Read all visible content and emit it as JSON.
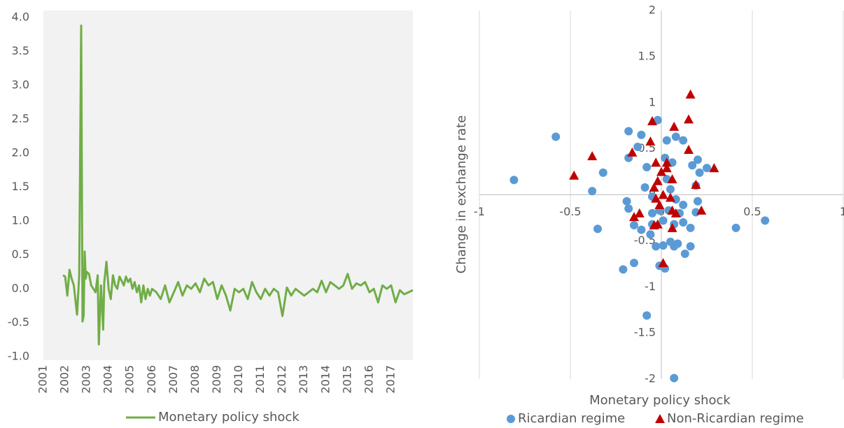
{
  "chart_data": [
    {
      "type": "line",
      "x": [
        2001.9,
        2002.0,
        2002.1,
        2002.2,
        2002.3,
        2002.4,
        2002.55,
        2002.65,
        2002.74,
        2002.8,
        2002.85,
        2002.9,
        2002.95,
        2003.0,
        2003.1,
        2003.2,
        2003.3,
        2003.4,
        2003.5,
        2003.55,
        2003.65,
        2003.75,
        2003.8,
        2003.9,
        2004.0,
        2004.1,
        2004.2,
        2004.3,
        2004.4,
        2004.5,
        2004.6,
        2004.7,
        2004.8,
        2004.9,
        2005.0,
        2005.1,
        2005.2,
        2005.3,
        2005.4,
        2005.5,
        2005.6,
        2005.7,
        2005.8,
        2005.9,
        2006.0,
        2006.2,
        2006.4,
        2006.6,
        2006.8,
        2007.0,
        2007.2,
        2007.4,
        2007.6,
        2007.8,
        2008.0,
        2008.2,
        2008.4,
        2008.6,
        2008.8,
        2009.0,
        2009.2,
        2009.4,
        2009.6,
        2009.8,
        2010.0,
        2010.2,
        2010.4,
        2010.6,
        2010.8,
        2011.0,
        2011.2,
        2011.4,
        2011.6,
        2011.8,
        2012.0,
        2012.2,
        2012.4,
        2012.6,
        2012.8,
        2013.0,
        2013.2,
        2013.4,
        2013.6,
        2013.8,
        2014.0,
        2014.2,
        2014.4,
        2014.6,
        2014.8,
        2015.0,
        2015.2,
        2015.4,
        2015.6,
        2015.8,
        2016.0,
        2016.2,
        2016.4,
        2016.6,
        2016.8,
        2017.0,
        2017.2,
        2017.4,
        2017.6,
        2017.8,
        2018.0
      ],
      "series": [
        {
          "name": "Monetary policy shock",
          "color": "#70ad47",
          "values": [
            0.2,
            0.18,
            -0.1,
            0.28,
            0.15,
            0.05,
            -0.38,
            0.2,
            3.88,
            -0.48,
            -0.4,
            0.55,
            0.15,
            0.25,
            0.22,
            0.05,
            0,
            -0.05,
            0.2,
            -0.82,
            0.05,
            -0.6,
            0.1,
            0.4,
            0,
            -0.15,
            0.2,
            0.05,
            0,
            0.18,
            0.12,
            0.05,
            0.18,
            0.1,
            0.15,
            0,
            0.1,
            -0.05,
            0.05,
            -0.2,
            0.05,
            -0.15,
            0,
            -0.1,
            0,
            -0.05,
            -0.15,
            0.05,
            -0.2,
            -0.05,
            0.1,
            -0.1,
            0.05,
            0,
            0.08,
            -0.05,
            0.15,
            0.05,
            0.1,
            -0.15,
            0.05,
            -0.1,
            -0.32,
            0,
            -0.05,
            0,
            -0.15,
            0.1,
            -0.05,
            -0.15,
            0,
            -0.1,
            0,
            -0.05,
            -0.4,
            0.02,
            -0.1,
            0,
            -0.05,
            -0.1,
            -0.05,
            0,
            -0.05,
            0.12,
            -0.05,
            0.1,
            0.05,
            0,
            0.05,
            0.22,
            0,
            0.08,
            0.05,
            0.1,
            -0.05,
            0,
            -0.2,
            0.05,
            0,
            0.05,
            -0.2,
            -0.02,
            -0.08,
            -0.05,
            -0.02
          ]
        }
      ],
      "xlim": [
        2001,
        2018
      ],
      "xticks": [
        2001,
        2002,
        2003,
        2004,
        2005,
        2006,
        2007,
        2008,
        2009,
        2010,
        2011,
        2012,
        2013,
        2014,
        2015,
        2016,
        2017
      ],
      "ylim": [
        -1,
        4
      ],
      "yticks": [
        {
          "value": 4,
          "label": "4.0"
        },
        3.5,
        {
          "value": 3,
          "label": "3.0"
        },
        2.5,
        {
          "value": 2,
          "label": "2.0"
        },
        1.5,
        {
          "value": 1,
          "label": "1.0"
        },
        0.5,
        {
          "value": 0,
          "label": "0.0"
        },
        -0.5,
        {
          "value": -1,
          "label": "-1.0"
        }
      ],
      "grid": false,
      "legend": "bottom"
    },
    {
      "type": "scatter",
      "x_label": "Monetary policy shock",
      "y_label": "Change in exchange rate",
      "series": [
        {
          "name": "Ricardian regime",
          "color": "#5b9bd5",
          "marker": "circle",
          "x": [
            -0.81,
            -0.58,
            -0.18,
            -0.11,
            -0.02,
            -0.13,
            -0.18,
            -0.32,
            -0.38,
            -0.35,
            -0.19,
            -0.18,
            -0.15,
            -0.11,
            -0.08,
            -0.09,
            -0.06,
            -0.03,
            0.03,
            0.08,
            0.12,
            0.02,
            0.06,
            0.17,
            0.2,
            0.21,
            0.25,
            0.19,
            0.2,
            0.19,
            0.12,
            0.16,
            0.16,
            0.13,
            0.09,
            0.05,
            0.01,
            0.07,
            -0.01,
            0.02,
            -0.15,
            -0.21,
            -0.08,
            0.07,
            0.41,
            0.57,
            0.04,
            0.08,
            0.12,
            0.07,
            -0.05,
            0.01,
            0.05,
            -0.05,
            -0.01,
            0.03,
            0.1,
            -0.05
          ],
          "values": [
            0.16,
            0.63,
            0.69,
            0.65,
            0.81,
            0.52,
            0.4,
            0.24,
            0.04,
            -0.37,
            -0.07,
            -0.15,
            -0.33,
            -0.38,
            0.3,
            0.08,
            -0.43,
            -0.56,
            0.59,
            0.63,
            0.59,
            0.4,
            0.35,
            0.32,
            0.38,
            0.24,
            0.29,
            0.1,
            -0.07,
            -0.19,
            -0.3,
            -0.36,
            -0.56,
            -0.64,
            -0.53,
            -0.51,
            -0.55,
            -0.56,
            -0.77,
            -0.8,
            -0.74,
            -0.81,
            -1.31,
            -1.99,
            -0.36,
            -0.28,
            -0.17,
            -0.05,
            -0.11,
            -0.32,
            -0.32,
            -0.28,
            0.06,
            -0.02,
            -0.17,
            0.17,
            -0.2,
            -0.2
          ]
        },
        {
          "name": "Non-Ricardian regime",
          "color": "#c00000",
          "marker": "triangle",
          "x": [
            0.16,
            0.15,
            -0.05,
            0.07,
            -0.06,
            0.15,
            -0.16,
            -0.38,
            -0.48,
            0.29,
            0.19,
            0.22,
            -0.03,
            0.03,
            0,
            0.06,
            -0.02,
            -0.04,
            0.01,
            -0.03,
            -0.01,
            0.05,
            0.06,
            0.08,
            -0.15,
            -0.12,
            -0.04,
            -0.02,
            0.06,
            0.01,
            0.03
          ],
          "values": [
            1.09,
            0.82,
            0.8,
            0.74,
            0.58,
            0.49,
            0.46,
            0.42,
            0.21,
            0.29,
            0.11,
            -0.17,
            0.35,
            0.35,
            0.25,
            0.17,
            0.15,
            0.08,
            0,
            -0.04,
            -0.11,
            -0.03,
            -0.17,
            -0.2,
            -0.24,
            -0.2,
            -0.33,
            -0.32,
            -0.36,
            -0.74,
            0.29
          ]
        }
      ],
      "xlim": [
        -1,
        1
      ],
      "xticks": [
        -1,
        -0.5,
        0,
        0.5,
        1
      ],
      "ylim": [
        -2,
        2
      ],
      "yticks": [
        -2,
        -1.5,
        -1,
        -0.5,
        0,
        0.5,
        1,
        1.5,
        2
      ],
      "grid": true,
      "legend": "bottom"
    }
  ]
}
